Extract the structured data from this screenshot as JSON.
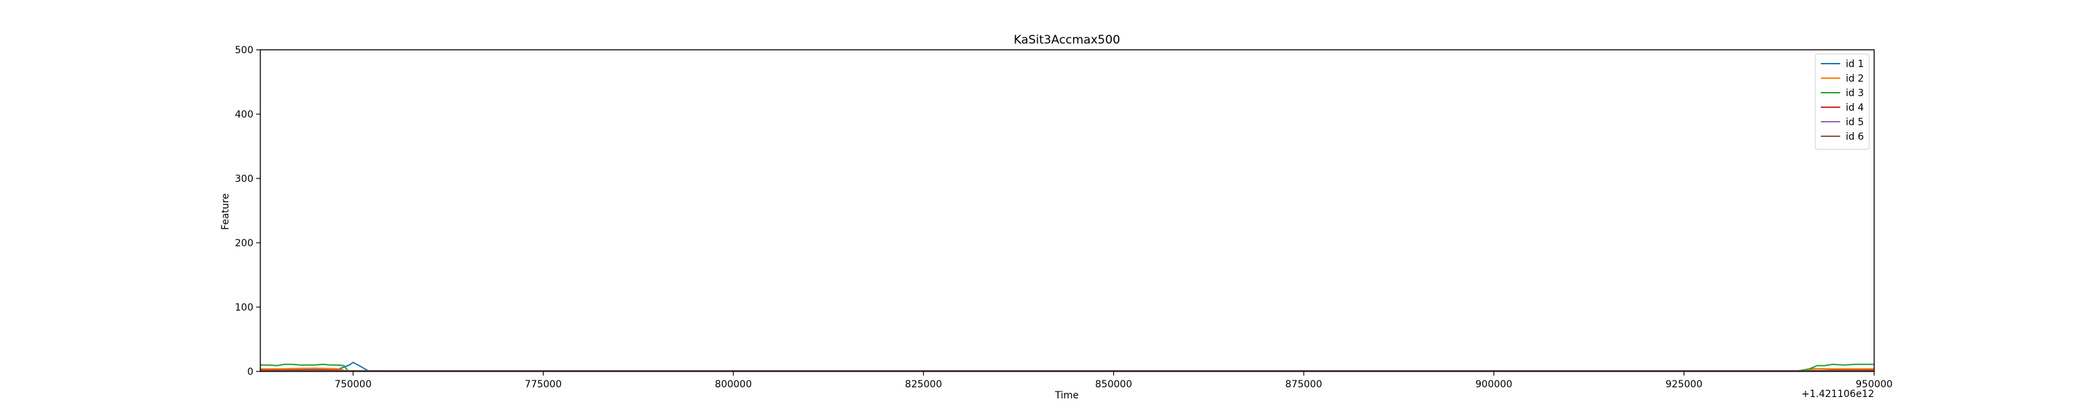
{
  "chart_data": {
    "type": "line",
    "title": "KaSit3Accmax500",
    "xlabel": "Time",
    "ylabel": "Feature",
    "x_offset_label": "+1.421106e12",
    "xlim": [
      737800,
      950000
    ],
    "ylim": [
      0,
      500
    ],
    "x_ticks": [
      750000,
      775000,
      800000,
      825000,
      850000,
      875000,
      900000,
      925000,
      950000
    ],
    "x_tick_labels": [
      "750000",
      "775000",
      "800000",
      "825000",
      "850000",
      "875000",
      "900000",
      "925000",
      "950000"
    ],
    "y_ticks": [
      0,
      100,
      200,
      300,
      400,
      500
    ],
    "y_tick_labels": [
      "0",
      "100",
      "200",
      "300",
      "400",
      "500"
    ],
    "grid": false,
    "legend_position": "top-right",
    "series": [
      {
        "name": "id 1",
        "color": "#1f77b4",
        "points": [
          [
            737800,
            3
          ],
          [
            740000,
            3
          ],
          [
            745000,
            3
          ],
          [
            748000,
            3
          ],
          [
            749500,
            10
          ],
          [
            750000,
            14
          ],
          [
            750800,
            9
          ],
          [
            752000,
            1
          ],
          [
            760000,
            1
          ],
          [
            800000,
            1
          ],
          [
            850000,
            1
          ],
          [
            900000,
            1
          ],
          [
            935000,
            1
          ],
          [
            940500,
            1
          ],
          [
            942000,
            4
          ],
          [
            943500,
            4
          ],
          [
            945000,
            3
          ],
          [
            948000,
            3
          ],
          [
            950000,
            3
          ]
        ]
      },
      {
        "name": "id 2",
        "color": "#ff7f0e",
        "points": [
          [
            737800,
            4
          ],
          [
            740000,
            4
          ],
          [
            745000,
            5
          ],
          [
            748000,
            4
          ],
          [
            749000,
            1
          ],
          [
            752000,
            1
          ],
          [
            800000,
            1
          ],
          [
            850000,
            1
          ],
          [
            900000,
            1
          ],
          [
            940000,
            1
          ],
          [
            941500,
            3
          ],
          [
            943000,
            4
          ],
          [
            946000,
            4
          ],
          [
            950000,
            4
          ]
        ]
      },
      {
        "name": "id 3",
        "color": "#2ca02c",
        "points": [
          [
            737800,
            10
          ],
          [
            739000,
            10
          ],
          [
            740000,
            9
          ],
          [
            741000,
            11
          ],
          [
            742000,
            11
          ],
          [
            743000,
            10
          ],
          [
            744000,
            10
          ],
          [
            745000,
            10
          ],
          [
            746000,
            11
          ],
          [
            747000,
            10
          ],
          [
            748000,
            10
          ],
          [
            748800,
            9
          ],
          [
            749300,
            1
          ],
          [
            752000,
            1
          ],
          [
            800000,
            1
          ],
          [
            850000,
            1
          ],
          [
            900000,
            1
          ],
          [
            940000,
            1
          ],
          [
            941500,
            4
          ],
          [
            942500,
            9
          ],
          [
            943500,
            9
          ],
          [
            944500,
            11
          ],
          [
            946000,
            10
          ],
          [
            947500,
            11
          ],
          [
            949000,
            11
          ],
          [
            950000,
            11
          ]
        ]
      },
      {
        "name": "id 4",
        "color": "#d62728",
        "points": [
          [
            737800,
            2
          ],
          [
            745000,
            2
          ],
          [
            748000,
            2
          ],
          [
            749000,
            1
          ],
          [
            760000,
            0
          ],
          [
            800000,
            0
          ],
          [
            850000,
            0
          ],
          [
            900000,
            0
          ],
          [
            940000,
            0
          ],
          [
            942000,
            1
          ],
          [
            945000,
            2
          ],
          [
            950000,
            2
          ]
        ]
      },
      {
        "name": "id 5",
        "color": "#9467bd",
        "points": [
          [
            737800,
            1
          ],
          [
            760000,
            1
          ],
          [
            800000,
            1
          ],
          [
            850000,
            1
          ],
          [
            900000,
            1
          ],
          [
            950000,
            1
          ]
        ]
      },
      {
        "name": "id 6",
        "color": "#8c564b",
        "points": [
          [
            737800,
            1
          ],
          [
            760000,
            1
          ],
          [
            800000,
            1
          ],
          [
            850000,
            1
          ],
          [
            900000,
            1
          ],
          [
            950000,
            1
          ]
        ]
      }
    ]
  }
}
